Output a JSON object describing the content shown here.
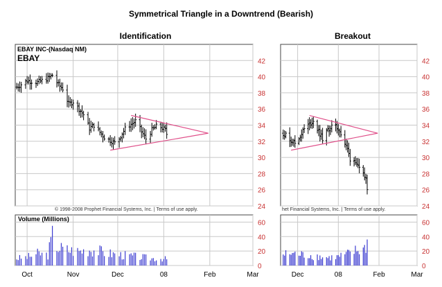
{
  "title": "Symmetrical Triangle in a Downtrend (Bearish)",
  "copyright_left": "© 1998-2008 Prophet Financial Systems, Inc. | Terms of use apply.",
  "copyright_right": "het Financial Systems, Inc. | Terms of use apply.",
  "colors": {
    "price": "#000000",
    "trendline": "#e0508a",
    "volume": "#3a3ad0",
    "axis_label": "#c83232",
    "grid": "#c8c8c8"
  },
  "chart_data": [
    {
      "type": "ohlc",
      "panel": "Identification",
      "title": "Identification",
      "ticker_line1": "EBAY INC-(Nasdaq NM)",
      "ticker_line2": "EBAY",
      "ylim": [
        24,
        44
      ],
      "yticks": [
        "24",
        "26",
        "28",
        "30",
        "32",
        "34",
        "36",
        "38",
        "40",
        "42"
      ],
      "xticks": [
        "Oct",
        "Nov",
        "Dec",
        "08",
        "Feb",
        "Mar"
      ],
      "trendlines": [
        {
          "from": [
            "Nov 26",
            30.9
          ],
          "to": [
            "Jan 31",
            33.0
          ]
        },
        {
          "from": [
            "Dec 10",
            35.2
          ],
          "to": [
            "Jan 31",
            33.0
          ]
        }
      ],
      "price_path": [
        [
          "Sep 24",
          38.7
        ],
        [
          "Oct 1",
          39.5
        ],
        [
          "Oct 8",
          39.3
        ],
        [
          "Oct 15",
          39.8
        ],
        [
          "Oct 18",
          40.2
        ],
        [
          "Oct 22",
          39.0
        ],
        [
          "Oct 25",
          38.5
        ],
        [
          "Oct 29",
          36.6
        ],
        [
          "Nov 1",
          36.9
        ],
        [
          "Nov 5",
          36.0
        ],
        [
          "Nov 8",
          35.3
        ],
        [
          "Nov 12",
          33.6
        ],
        [
          "Nov 15",
          34.0
        ],
        [
          "Nov 19",
          33.1
        ],
        [
          "Nov 22",
          32.5
        ],
        [
          "Nov 26",
          32.1
        ],
        [
          "Nov 30",
          31.7
        ],
        [
          "Dec 4",
          33.0
        ],
        [
          "Dec 7",
          33.8
        ],
        [
          "Dec 10",
          34.1
        ],
        [
          "Dec 13",
          34.5
        ],
        [
          "Dec 17",
          33.2
        ],
        [
          "Dec 20",
          32.3
        ],
        [
          "Dec 24",
          33.4
        ],
        [
          "Dec 28",
          34.0
        ],
        [
          "Jan 2",
          33.4
        ],
        [
          "Jan 4",
          32.4
        ]
      ]
    },
    {
      "type": "bar",
      "panel": "Identification",
      "title": "Volume (Millions)",
      "ylim": [
        0,
        70
      ],
      "yticks": [
        "0",
        "20",
        "40",
        "60"
      ],
      "volume_path": [
        [
          "Sep 24",
          12
        ],
        [
          "Oct 1",
          14
        ],
        [
          "Oct 8",
          20
        ],
        [
          "Oct 15",
          18
        ],
        [
          "Oct 18",
          50
        ],
        [
          "Oct 22",
          30
        ],
        [
          "Oct 29",
          26
        ],
        [
          "Nov 5",
          24
        ],
        [
          "Nov 12",
          28
        ],
        [
          "Nov 19",
          24
        ],
        [
          "Nov 26",
          20
        ],
        [
          "Dec 3",
          18
        ],
        [
          "Dec 10",
          16
        ],
        [
          "Dec 17",
          14
        ],
        [
          "Dec 24",
          12
        ],
        [
          "Dec 31",
          12
        ],
        [
          "Jan 4",
          10
        ]
      ]
    },
    {
      "type": "ohlc",
      "panel": "Breakout",
      "title": "Breakout",
      "ylim": [
        24,
        44
      ],
      "yticks": [
        "24",
        "26",
        "28",
        "30",
        "32",
        "34",
        "36",
        "38",
        "40",
        "42"
      ],
      "xticks": [
        "Dec",
        "08",
        "Feb",
        "Mar"
      ],
      "trendlines": [
        {
          "from": [
            "Nov 26",
            30.9
          ],
          "to": [
            "Jan 31",
            33.0
          ]
        },
        {
          "from": [
            "Dec 10",
            35.2
          ],
          "to": [
            "Jan 31",
            33.0
          ]
        }
      ],
      "price_path": [
        [
          "Nov 20",
          33.0
        ],
        [
          "Nov 23",
          32.6
        ],
        [
          "Nov 26",
          32.1
        ],
        [
          "Nov 30",
          31.7
        ],
        [
          "Dec 4",
          33.0
        ],
        [
          "Dec 7",
          33.8
        ],
        [
          "Dec 10",
          34.1
        ],
        [
          "Dec 13",
          34.5
        ],
        [
          "Dec 17",
          33.2
        ],
        [
          "Dec 20",
          32.3
        ],
        [
          "Dec 24",
          33.4
        ],
        [
          "Dec 28",
          34.0
        ],
        [
          "Jan 2",
          33.4
        ],
        [
          "Jan 4",
          32.3
        ],
        [
          "Jan 8",
          31.0
        ],
        [
          "Jan 10",
          29.8
        ],
        [
          "Jan 14",
          29.6
        ],
        [
          "Jan 16",
          28.8
        ],
        [
          "Jan 18",
          28.2
        ],
        [
          "Jan 22",
          27.4
        ],
        [
          "Jan 23",
          26.3
        ]
      ]
    },
    {
      "type": "bar",
      "panel": "Breakout",
      "title": "",
      "ylim": [
        0,
        70
      ],
      "yticks": [
        "0",
        "20",
        "40",
        "60"
      ],
      "volume_path": [
        [
          "Nov 20",
          18
        ],
        [
          "Nov 26",
          20
        ],
        [
          "Dec 3",
          18
        ],
        [
          "Dec 10",
          17
        ],
        [
          "Dec 17",
          15
        ],
        [
          "Dec 24",
          13
        ],
        [
          "Dec 31",
          14
        ],
        [
          "Jan 7",
          18
        ],
        [
          "Jan 14",
          24
        ],
        [
          "Jan 21",
          28
        ],
        [
          "Jan 23",
          36
        ]
      ]
    }
  ]
}
